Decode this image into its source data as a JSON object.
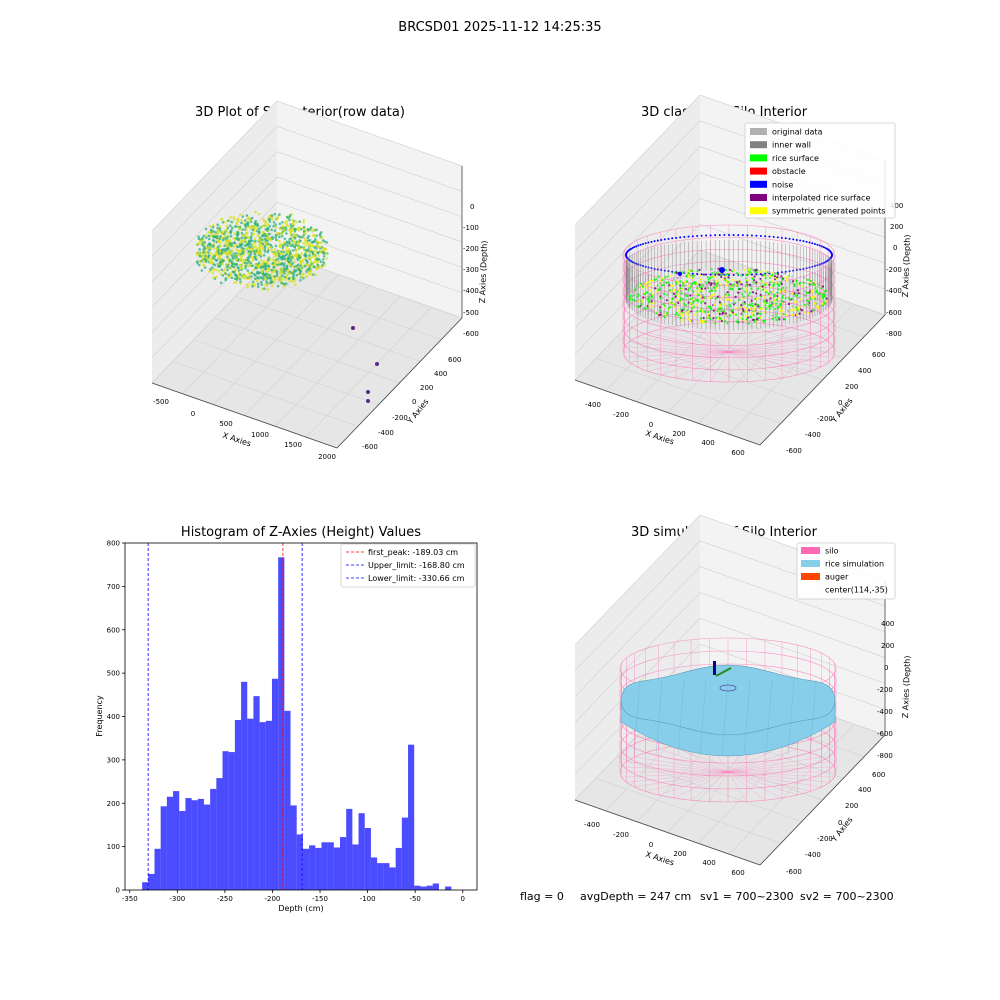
{
  "figure": {
    "title": "BRCSD01 2025-11-12 14:25:35",
    "footer": {
      "flag": "flag = 0",
      "avg_depth": "avgDepth = 247 cm",
      "sv1": "sv1 = 700~2300",
      "sv2": "sv2 = 700~2300"
    }
  },
  "chart_data": [
    {
      "type": "scatter",
      "title": "3D Plot of Silo Interior(row data)",
      "xlabel": "X Axies",
      "ylabel": "Y Axies",
      "zlabel": "Z Axies (Depth)",
      "xticks": [
        "-500",
        "0",
        "500",
        "1000",
        "1500",
        "2000"
      ],
      "yticks": [
        "-600",
        "-400",
        "-200",
        "0",
        "200",
        "400",
        "600"
      ],
      "zticks": [
        "0",
        "-100",
        "-200",
        "-300",
        "-400",
        "-500",
        "-600"
      ],
      "colors": {
        "points_low": "#2ab07f",
        "points_high": "#d8e219",
        "outliers": "#5b2a86"
      }
    },
    {
      "type": "scatter",
      "title": "3D classify of Silo Interior",
      "xlabel": "X Axies",
      "ylabel": "Y Axies",
      "zlabel": "Z Axies (Depth)",
      "xticks": [
        "-400",
        "-200",
        "0",
        "200",
        "400",
        "600"
      ],
      "yticks": [
        "-600",
        "-400",
        "-200",
        "0",
        "200",
        "400",
        "600"
      ],
      "zticks": [
        "400",
        "200",
        "0",
        "-200",
        "-400",
        "-600",
        "-800"
      ],
      "legend_position": "top-right",
      "legend": [
        {
          "label": "original data",
          "color": "#b0b0b0"
        },
        {
          "label": "inner wall",
          "color": "#808080"
        },
        {
          "label": "rice surface",
          "color": "#00ff00"
        },
        {
          "label": "obstacle",
          "color": "#ff0000"
        },
        {
          "label": "noise",
          "color": "#0000ff"
        },
        {
          "label": "interpolated rice surface",
          "color": "#800080"
        },
        {
          "label": "symmetric generated points",
          "color": "#ffff00"
        }
      ],
      "colors": {
        "wireframe": "#ff69b4"
      }
    },
    {
      "type": "bar",
      "title": "Histogram of Z-Axies (Height) Values",
      "xlabel": "Depth (cm)",
      "ylabel": "Frequency",
      "xlim": [
        -355,
        15
      ],
      "ylim": [
        0,
        800
      ],
      "xticks": [
        -350,
        -300,
        -250,
        -200,
        -150,
        -100,
        -50,
        0
      ],
      "yticks": [
        0,
        100,
        200,
        300,
        400,
        500,
        600,
        700,
        800
      ],
      "bin_start": -337,
      "bin_width": 6.5,
      "values": [
        18,
        37,
        95,
        193,
        215,
        228,
        182,
        212,
        207,
        210,
        197,
        233,
        258,
        320,
        318,
        392,
        480,
        395,
        447,
        387,
        390,
        487,
        767,
        413,
        195,
        128,
        95,
        103,
        97,
        110,
        110,
        98,
        122,
        187,
        105,
        177,
        143,
        75,
        62,
        62,
        52,
        97,
        167,
        335,
        10,
        8,
        10,
        15,
        0,
        8
      ],
      "bar_color": "#0000ff",
      "lines": [
        {
          "label": "first_peak: -189.03 cm",
          "value": -189.03,
          "color": "#ff0000"
        },
        {
          "label": "Upper_limit: -168.80 cm",
          "value": -168.8,
          "color": "#0000ff"
        },
        {
          "label": "Lower_limit: -330.66 cm",
          "value": -330.66,
          "color": "#0000ff"
        }
      ],
      "legend_position": "top-right"
    },
    {
      "type": "area",
      "title": "3D simulation of Silo Interior",
      "xlabel": "X Axies",
      "ylabel": "Y Axies",
      "zlabel": "Z Axies (Depth)",
      "xticks": [
        "-400",
        "-200",
        "0",
        "200",
        "400",
        "600"
      ],
      "yticks": [
        "-600",
        "-400",
        "-200",
        "0",
        "200",
        "400",
        "600"
      ],
      "zticks": [
        "400",
        "200",
        "0",
        "-200",
        "-400",
        "-600",
        "-800"
      ],
      "legend_position": "top-right",
      "legend": [
        {
          "label": "silo",
          "color": "#ff69b4"
        },
        {
          "label": "rice simulation",
          "color": "#87ceeb"
        },
        {
          "label": "auger",
          "color": "#ff4500"
        },
        {
          "label": "center(114,-35)",
          "color": ""
        }
      ]
    }
  ]
}
